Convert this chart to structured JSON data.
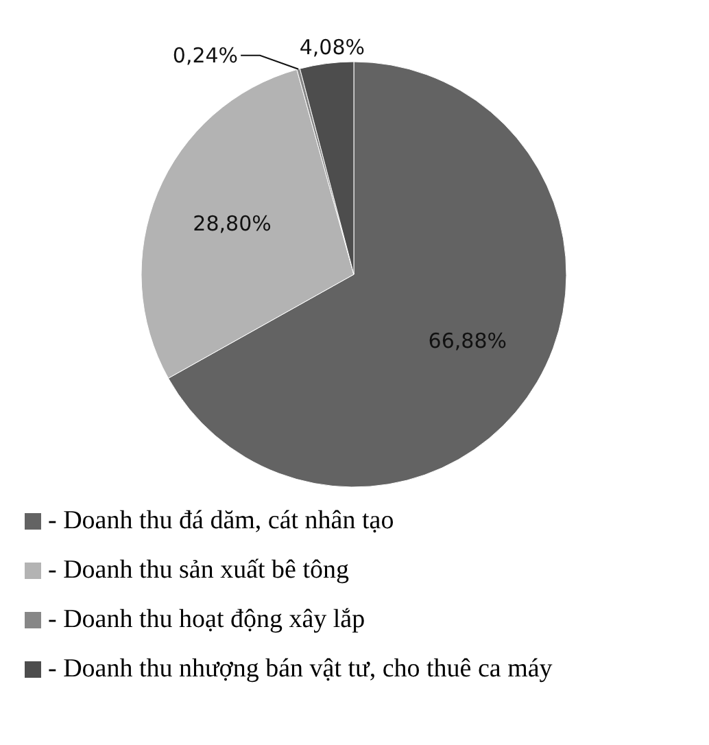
{
  "chart_data": {
    "type": "pie",
    "categories": [
      "- Doanh thu đá dăm, cát nhân tạo",
      "- Doanh thu sản xuất bê tông",
      "- Doanh thu hoạt động xây lắp",
      "- Doanh thu nhượng bán vật tư, cho thuê ca máy"
    ],
    "values": [
      66.88,
      28.8,
      0.24,
      4.08
    ],
    "colors": [
      "#636363",
      "#b3b3b3",
      "#878787",
      "#4d4d4d"
    ],
    "value_labels": [
      "66,88%",
      "28,80%",
      "0,24%",
      "4,08%"
    ],
    "legend": "bottom"
  }
}
